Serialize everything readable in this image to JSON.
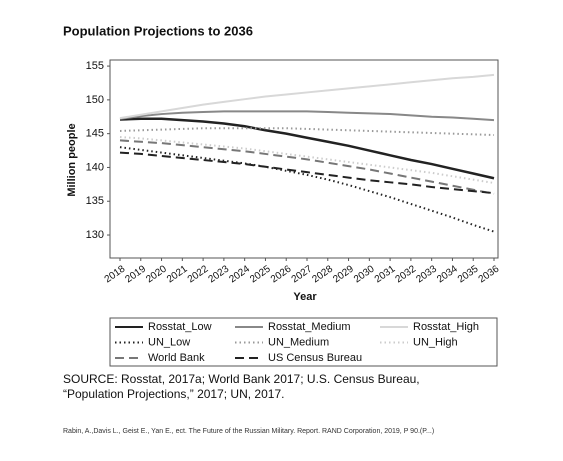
{
  "chart_data": {
    "type": "line",
    "title": "Population Projections to 2036",
    "xlabel": "Year",
    "ylabel": "Million people",
    "categories": [
      "2018",
      "2019",
      "2020",
      "2021",
      "2022",
      "2023",
      "2024",
      "2025",
      "2026",
      "2027",
      "2028",
      "2029",
      "2030",
      "2031",
      "2032",
      "2033",
      "2034",
      "2035",
      "2036"
    ],
    "ylim": [
      126.6,
      155.9
    ],
    "yticks": [
      130,
      135,
      140,
      145,
      150,
      155
    ],
    "series": [
      {
        "name": "Rosstat_Low",
        "color": "#222222",
        "style": "solid",
        "values": [
          147.1,
          147.2,
          147.2,
          147.0,
          146.8,
          146.5,
          146.1,
          145.5,
          145.0,
          144.4,
          143.8,
          143.2,
          142.5,
          141.8,
          141.1,
          140.5,
          139.8,
          139.1,
          138.4
        ]
      },
      {
        "name": "Rosstat_Medium",
        "color": "#888888",
        "style": "solid",
        "values": [
          147.2,
          147.6,
          147.9,
          148.1,
          148.2,
          148.3,
          148.3,
          148.3,
          148.3,
          148.3,
          148.2,
          148.1,
          148.0,
          147.9,
          147.7,
          147.5,
          147.4,
          147.2,
          147.0
        ]
      },
      {
        "name": "Rosstat_High",
        "color": "#d8d8d8",
        "style": "solid",
        "values": [
          147.3,
          147.8,
          148.3,
          148.8,
          149.3,
          149.7,
          150.1,
          150.5,
          150.8,
          151.1,
          151.4,
          151.7,
          152.0,
          152.3,
          152.6,
          152.9,
          153.2,
          153.4,
          153.7
        ]
      },
      {
        "name": "UN_Low",
        "color": "#222222",
        "style": "dotted",
        "values": [
          143.0,
          142.6,
          142.2,
          141.8,
          141.4,
          141.0,
          140.6,
          140.1,
          139.5,
          138.9,
          138.2,
          137.4,
          136.5,
          135.6,
          134.6,
          133.6,
          132.6,
          131.5,
          130.5
        ]
      },
      {
        "name": "UN_Medium",
        "color": "#999999",
        "style": "dotted",
        "values": [
          145.4,
          145.5,
          145.6,
          145.7,
          145.8,
          145.8,
          145.8,
          145.8,
          145.8,
          145.7,
          145.6,
          145.5,
          145.4,
          145.3,
          145.2,
          145.1,
          145.0,
          144.9,
          144.8
        ]
      },
      {
        "name": "UN_High",
        "color": "#cccccc",
        "style": "dotted",
        "values": [
          144.5,
          144.3,
          144.0,
          143.7,
          143.4,
          143.1,
          142.8,
          142.4,
          142.0,
          141.6,
          141.2,
          140.8,
          140.4,
          140.0,
          139.6,
          139.2,
          138.7,
          138.2,
          137.7
        ]
      },
      {
        "name": "World Bank",
        "color": "#777777",
        "style": "dashed",
        "values": [
          144.0,
          143.8,
          143.6,
          143.3,
          143.0,
          142.7,
          142.4,
          142.0,
          141.6,
          141.2,
          140.7,
          140.2,
          139.7,
          139.1,
          138.5,
          137.9,
          137.3,
          136.7,
          136.1
        ]
      },
      {
        "name": "US Census Bureau",
        "color": "#222222",
        "style": "dashed",
        "values": [
          142.2,
          142.0,
          141.7,
          141.4,
          141.1,
          140.8,
          140.5,
          140.1,
          139.7,
          139.3,
          138.9,
          138.5,
          138.1,
          137.8,
          137.5,
          137.1,
          136.8,
          136.5,
          136.2
        ]
      }
    ]
  },
  "source": "SOURCE: Rosstat, 2017a; World Bank 2017; U.S. Census Bureau, “Population Projections,” 2017; UN, 2017.",
  "credit": "Rabin, A.,Davis L., Geist E., Yan E., ect. The Future of the Russian Military. Report. RAND Corporation, 2019, P 90.(P...)"
}
